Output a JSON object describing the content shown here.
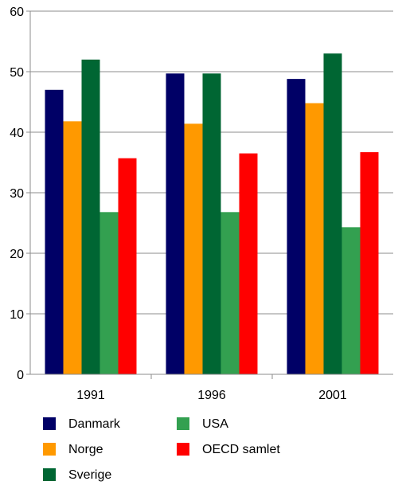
{
  "chart_data": {
    "type": "bar",
    "categories": [
      "1991",
      "1996",
      "2001"
    ],
    "series": [
      {
        "name": "Danmark",
        "color": "#000066",
        "values": [
          47.0,
          49.7,
          48.8
        ]
      },
      {
        "name": "Norge",
        "color": "#ff9900",
        "values": [
          41.8,
          41.4,
          44.8
        ]
      },
      {
        "name": "Sverige",
        "color": "#006633",
        "values": [
          52.0,
          49.7,
          53.0
        ]
      },
      {
        "name": "USA",
        "color": "#33a050",
        "values": [
          26.8,
          26.8,
          24.3
        ]
      },
      {
        "name": "OECD samlet",
        "color": "#ff0000",
        "values": [
          35.7,
          36.5,
          36.7
        ]
      }
    ],
    "ylim": [
      0,
      60
    ],
    "yticks": [
      0,
      10,
      20,
      30,
      40,
      50,
      60
    ],
    "grid": true,
    "legend_position": "bottom"
  }
}
